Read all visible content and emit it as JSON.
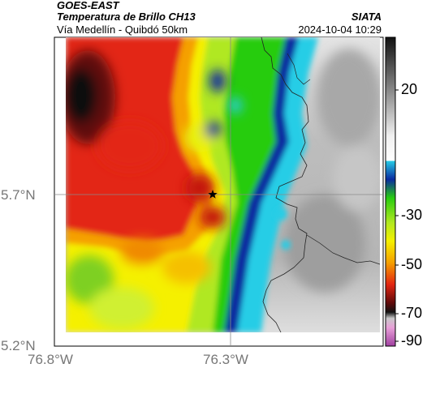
{
  "header": {
    "source": "GOES-EAST",
    "product": "Temperatura de Brillo CH13",
    "route": "Vía Medellín - Quibdó 50km",
    "org": "SIATA",
    "datetime": "2024-10-04 10:29"
  },
  "map": {
    "lat_ticks": [
      "5.7°N",
      "5.2°N"
    ],
    "lon_ticks": [
      "76.8°W",
      "76.3°W"
    ],
    "marker_icon": "star-icon"
  },
  "colorbar": {
    "ticks": [
      "20",
      "-30",
      "-50",
      "-70",
      "-90"
    ]
  },
  "colors": {
    "coldest": "#c050b0",
    "cold": "#111111",
    "red": "#e32612",
    "orange": "#f5a000",
    "yellow": "#f5f000",
    "green": "#28cc10",
    "blue": "#0a2aa0",
    "cyan": "#26cde6",
    "warm_gray": "#bdbdbd"
  }
}
